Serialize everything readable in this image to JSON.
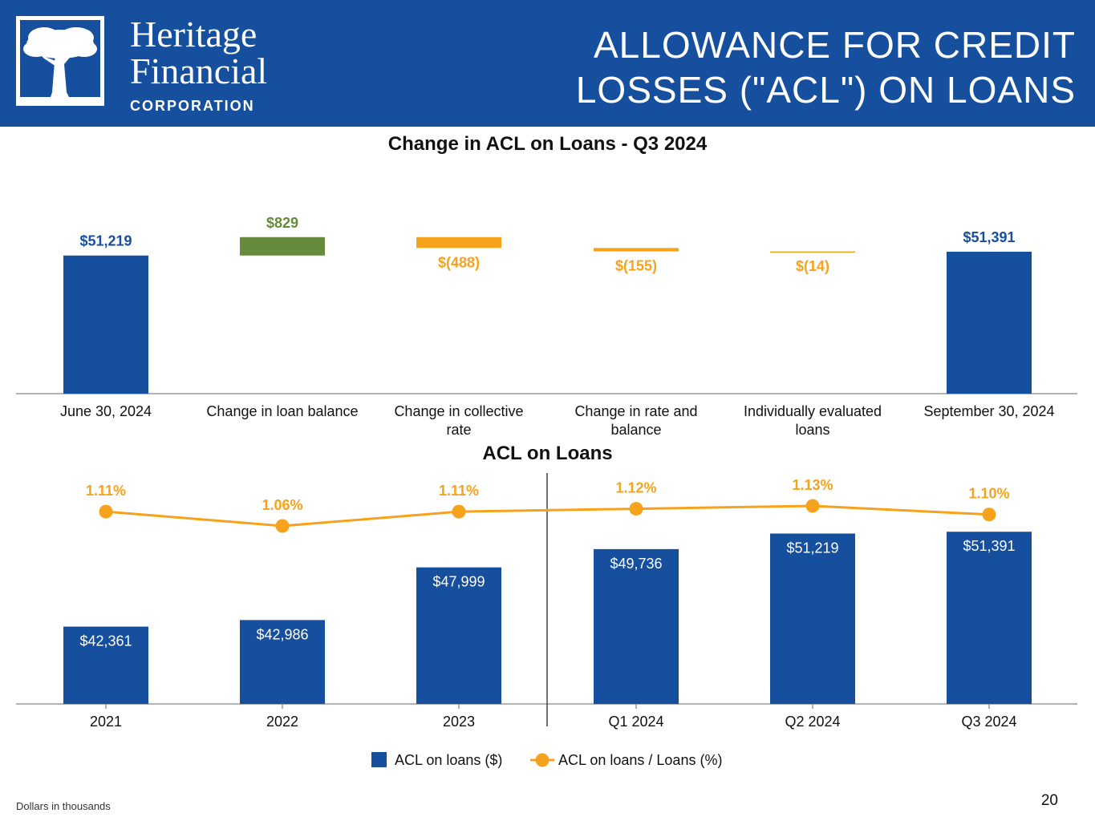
{
  "header": {
    "company_line1": "Heritage",
    "company_line2": "Financial",
    "company_line3": "CORPORATION",
    "title_line1": "ALLOWANCE FOR CREDIT",
    "title_line2": "LOSSES (\"ACL\") ON LOANS",
    "logo_icon": "tree-icon"
  },
  "colors": {
    "brand_blue": "#154f9e",
    "green": "#668b3c",
    "orange": "#f6a21c"
  },
  "chart_data": [
    {
      "type": "bar",
      "subtype": "waterfall",
      "title": "Change in ACL on Loans - Q3 2024",
      "categories": [
        "June 30, 2024",
        "Change in loan balance",
        "Change in collective rate",
        "Change in rate and balance",
        "Individually evaluated loans",
        "September 30, 2024"
      ],
      "values": [
        51219,
        829,
        -488,
        -155,
        -14,
        51391
      ],
      "labels": [
        "$51,219",
        "$829",
        "$(488)",
        "$(155)",
        "$(14)",
        "$51,391"
      ],
      "kinds": [
        "total",
        "increase",
        "decrease",
        "decrease",
        "decrease",
        "total"
      ]
    },
    {
      "type": "bar",
      "title": "ACL on Loans",
      "categories": [
        "2021",
        "2022",
        "2023",
        "Q1 2024",
        "Q2 2024",
        "Q3 2024"
      ],
      "series": [
        {
          "name": "ACL on loans ($)",
          "values": [
            42361,
            42986,
            47999,
            49736,
            51219,
            51391
          ],
          "labels": [
            "$42,361",
            "$42,986",
            "$47,999",
            "$49,736",
            "$51,219",
            "$51,391"
          ]
        },
        {
          "name": "ACL on loans / Loans (%)",
          "type": "line",
          "values": [
            1.11,
            1.06,
            1.11,
            1.12,
            1.13,
            1.1
          ],
          "labels": [
            "1.11%",
            "1.06%",
            "1.11%",
            "1.12%",
            "1.13%",
            "1.10%"
          ]
        }
      ],
      "legend": [
        "ACL on loans ($)",
        "ACL on loans / Loans (%)"
      ],
      "legend_position": "bottom-center"
    }
  ],
  "footnote": "Dollars in thousands",
  "page_number": "20"
}
